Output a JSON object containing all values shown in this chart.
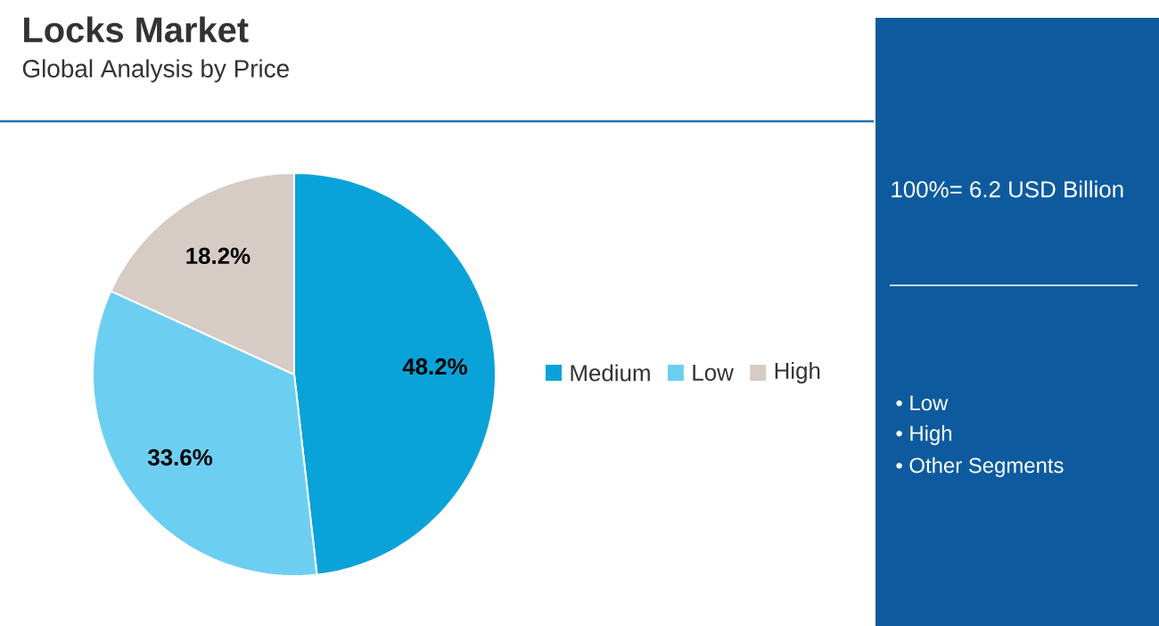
{
  "chart_data": {
    "type": "pie",
    "title": "Locks Market",
    "subtitle": "Global Analysis by Price",
    "categories": [
      "Medium",
      "Low",
      "High"
    ],
    "values": [
      48.2,
      33.6,
      18.2
    ],
    "value_labels": [
      "48.2%",
      "33.6%",
      "18.2%"
    ],
    "colors": [
      "#0aa3d9",
      "#6ccff2",
      "#d7cbc5"
    ],
    "legend": "right",
    "annotations": [
      "100%= 6.2 USD Billion",
      "• Low",
      "• High",
      "• Other Segments"
    ]
  }
}
